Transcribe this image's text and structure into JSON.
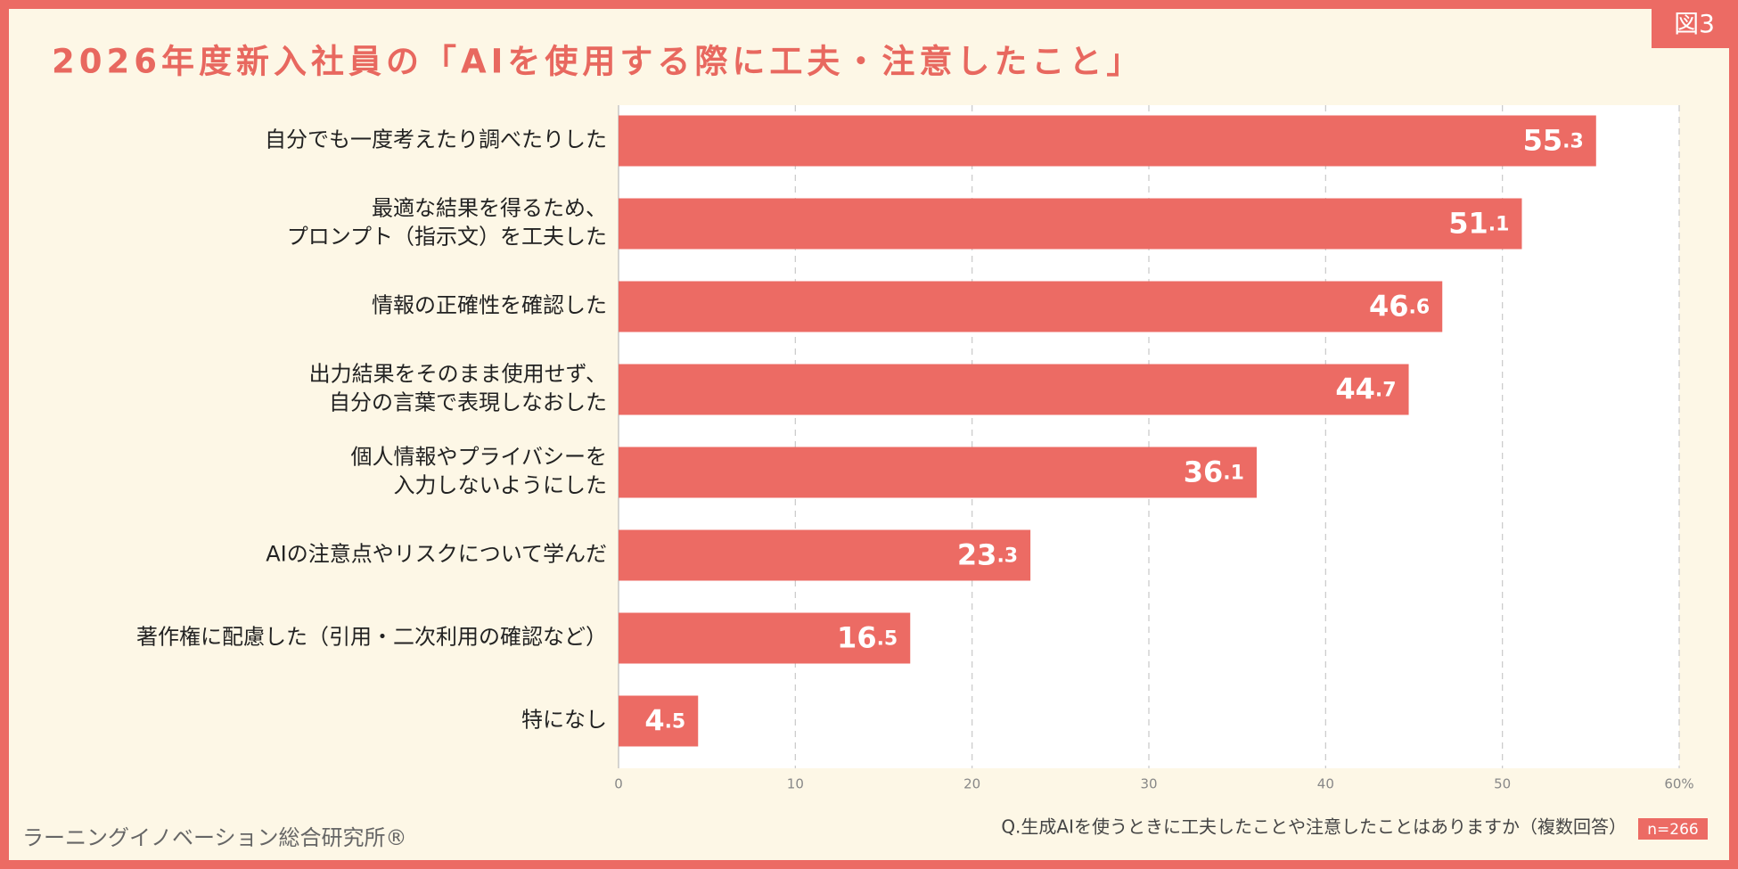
{
  "chart_data": {
    "type": "bar",
    "orientation": "horizontal",
    "title": "2026年度新入社員の「AIを使用する際に工夫・注意したこと」",
    "figure_label": "図3",
    "categories": [
      "自分でも一度考えたり調べたりした",
      "最適な結果を得るため、\nプロンプト（指示文）を工夫した",
      "情報の正確性を確認した",
      "出力結果をそのまま使用せず、\n自分の言葉で表現しなおした",
      "個人情報やプライバシーを\n入力しないようにした",
      "AIの注意点やリスクについて学んだ",
      "著作権に配慮した（引用・二次利用の確認など）",
      "特になし"
    ],
    "values": [
      55.3,
      51.1,
      46.6,
      44.7,
      36.1,
      23.3,
      16.5,
      4.5
    ],
    "color": "#ec6b64",
    "xlim": [
      0,
      60
    ],
    "xticks": [
      0,
      10,
      20,
      30,
      40,
      50,
      {
        "value": 60,
        "label": "60%"
      }
    ],
    "grid": true,
    "note": "Q.生成AIを使うときに工夫したことや注意したことはありますか（複数回答）",
    "sample_size": "n=266",
    "source": "ラーニングイノベーション総合研究所®"
  }
}
